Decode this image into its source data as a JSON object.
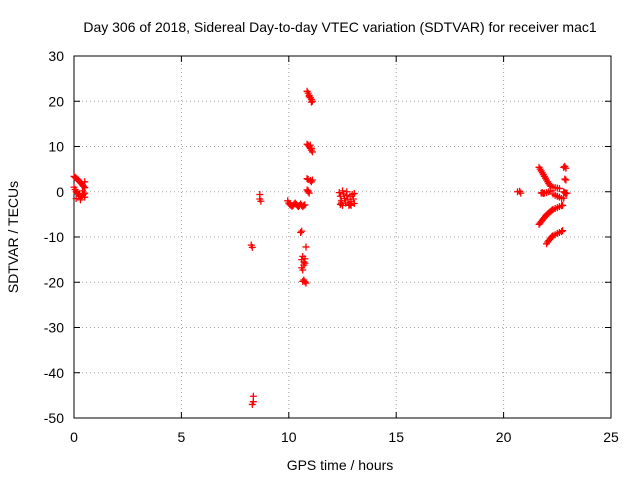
{
  "chart_data": {
    "type": "scatter",
    "title": "Day 306 of 2018, Sidereal Day-to-day VTEC variation (SDTVAR) for receiver mac1",
    "xlabel": "GPS time / hours",
    "ylabel": "SDTVAR / TECUs",
    "xlim": [
      0,
      25
    ],
    "ylim": [
      -50,
      30
    ],
    "xticks": [
      "0",
      "5",
      "10",
      "15",
      "20",
      "25"
    ],
    "yticks": [
      "-50",
      "-40",
      "-30",
      "-20",
      "-10",
      "0",
      "10",
      "20",
      "30"
    ],
    "grid": true,
    "marker": "+",
    "color": "#ff0000",
    "series": [
      {
        "name": "SDTVAR",
        "points": [
          [
            0.0,
            3.4
          ],
          [
            0.05,
            3.2
          ],
          [
            0.1,
            3.0
          ],
          [
            0.15,
            2.8
          ],
          [
            0.2,
            2.6
          ],
          [
            0.25,
            2.3
          ],
          [
            0.3,
            2.0
          ],
          [
            0.35,
            1.8
          ],
          [
            0.4,
            1.5
          ],
          [
            0.45,
            1.2
          ],
          [
            0.5,
            0.9
          ],
          [
            0.5,
            2.2
          ],
          [
            0.4,
            0.2
          ],
          [
            0.0,
            1.0
          ],
          [
            0.05,
            0.5
          ],
          [
            0.1,
            0.0
          ],
          [
            0.15,
            -0.3
          ],
          [
            0.2,
            -0.5
          ],
          [
            0.25,
            -0.8
          ],
          [
            0.3,
            -1.0
          ],
          [
            0.35,
            -1.2
          ],
          [
            0.4,
            -0.8
          ],
          [
            0.45,
            -0.5
          ],
          [
            0.5,
            -0.3
          ],
          [
            0.5,
            -1.2
          ],
          [
            0.1,
            -1.5
          ],
          [
            0.3,
            -1.8
          ],
          [
            8.25,
            -11.8
          ],
          [
            8.3,
            -12.3
          ],
          [
            8.35,
            -45.2
          ],
          [
            8.35,
            -46.4
          ],
          [
            8.3,
            -47.0
          ],
          [
            8.65,
            -0.6
          ],
          [
            8.65,
            -1.6
          ],
          [
            8.7,
            -2.1
          ],
          [
            9.95,
            -2.0
          ],
          [
            10.0,
            -2.5
          ],
          [
            10.05,
            -2.8
          ],
          [
            10.1,
            -3.0
          ],
          [
            10.15,
            -3.2
          ],
          [
            10.2,
            -3.0
          ],
          [
            10.25,
            -2.7
          ],
          [
            10.3,
            -2.5
          ],
          [
            10.35,
            -2.8
          ],
          [
            10.4,
            -3.1
          ],
          [
            10.45,
            -3.3
          ],
          [
            10.5,
            -3.0
          ],
          [
            10.55,
            -2.7
          ],
          [
            10.6,
            -3.0
          ],
          [
            10.65,
            -3.3
          ],
          [
            10.7,
            -3.0
          ],
          [
            10.75,
            -2.9
          ],
          [
            10.6,
            -8.7
          ],
          [
            10.55,
            -9.0
          ],
          [
            10.6,
            -15.0
          ],
          [
            10.65,
            -14.3
          ],
          [
            10.7,
            -15.5
          ],
          [
            10.75,
            -14.8
          ],
          [
            10.7,
            -16.2
          ],
          [
            10.6,
            -16.8
          ],
          [
            10.65,
            -17.3
          ],
          [
            10.8,
            -12.2
          ],
          [
            10.75,
            -15.8
          ],
          [
            10.7,
            -19.5
          ],
          [
            10.75,
            -19.9
          ],
          [
            10.8,
            -20.2
          ],
          [
            10.65,
            -19.8
          ],
          [
            10.85,
            22.2
          ],
          [
            10.9,
            21.8
          ],
          [
            10.95,
            21.3
          ],
          [
            11.0,
            20.8
          ],
          [
            11.05,
            20.4
          ],
          [
            11.1,
            20.0
          ],
          [
            11.05,
            19.8
          ],
          [
            10.95,
            21.0
          ],
          [
            10.85,
            10.5
          ],
          [
            10.9,
            10.3
          ],
          [
            10.95,
            10.0
          ],
          [
            11.0,
            9.6
          ],
          [
            11.05,
            9.2
          ],
          [
            11.1,
            8.8
          ],
          [
            11.05,
            9.6
          ],
          [
            11.0,
            10.3
          ],
          [
            10.85,
            2.9
          ],
          [
            10.9,
            2.7
          ],
          [
            11.0,
            2.5
          ],
          [
            11.1,
            2.6
          ],
          [
            11.05,
            2.2
          ],
          [
            10.85,
            0.4
          ],
          [
            10.9,
            0.0
          ],
          [
            10.95,
            -0.3
          ],
          [
            10.9,
            0.2
          ],
          [
            12.35,
            -0.2
          ],
          [
            12.4,
            -1.0
          ],
          [
            12.45,
            -2.0
          ],
          [
            12.5,
            -3.0
          ],
          [
            12.4,
            -2.8
          ],
          [
            12.55,
            -0.5
          ],
          [
            12.6,
            -1.5
          ],
          [
            12.65,
            -2.5
          ],
          [
            12.7,
            -0.8
          ],
          [
            12.75,
            -1.8
          ],
          [
            12.8,
            -3.0
          ],
          [
            12.85,
            -1.0
          ],
          [
            12.9,
            -2.2
          ],
          [
            12.95,
            -0.6
          ],
          [
            13.0,
            -1.6
          ],
          [
            13.05,
            -2.6
          ],
          [
            13.05,
            -0.4
          ],
          [
            12.5,
            0.2
          ],
          [
            12.7,
            0.0
          ],
          [
            12.9,
            -3.0
          ],
          [
            12.45,
            -2.5
          ],
          [
            12.85,
            -2.8
          ],
          [
            20.65,
            0.0
          ],
          [
            20.75,
            0.1
          ],
          [
            20.8,
            -0.3
          ],
          [
            21.65,
            5.4
          ],
          [
            21.7,
            5.0
          ],
          [
            21.75,
            4.6
          ],
          [
            21.8,
            4.2
          ],
          [
            21.85,
            3.8
          ],
          [
            21.9,
            3.4
          ],
          [
            21.95,
            3.0
          ],
          [
            22.0,
            2.6
          ],
          [
            22.05,
            2.2
          ],
          [
            22.1,
            1.8
          ],
          [
            22.15,
            1.5
          ],
          [
            22.2,
            1.2
          ],
          [
            22.3,
            1.0
          ],
          [
            22.4,
            0.9
          ],
          [
            22.5,
            0.8
          ],
          [
            22.6,
            0.7
          ],
          [
            21.75,
            -0.3
          ],
          [
            21.8,
            -0.2
          ],
          [
            21.85,
            -0.4
          ],
          [
            21.9,
            -0.3
          ],
          [
            22.0,
            -0.2
          ],
          [
            22.1,
            0.0
          ],
          [
            22.2,
            0.2
          ],
          [
            22.3,
            -0.5
          ],
          [
            22.4,
            -0.8
          ],
          [
            22.5,
            -1.0
          ],
          [
            22.6,
            -1.2
          ],
          [
            22.7,
            -1.5
          ],
          [
            22.8,
            -1.4
          ],
          [
            22.85,
            -0.2
          ],
          [
            22.9,
            -0.4
          ],
          [
            22.95,
            -0.3
          ],
          [
            21.65,
            -7.2
          ],
          [
            21.7,
            -6.9
          ],
          [
            21.75,
            -6.6
          ],
          [
            21.8,
            -6.3
          ],
          [
            21.85,
            -6.0
          ],
          [
            21.9,
            -5.7
          ],
          [
            21.95,
            -5.4
          ],
          [
            22.0,
            -5.1
          ],
          [
            22.05,
            -4.9
          ],
          [
            22.1,
            -4.7
          ],
          [
            22.15,
            -4.5
          ],
          [
            22.2,
            -4.3
          ],
          [
            22.25,
            -4.1
          ],
          [
            22.3,
            -3.9
          ],
          [
            22.4,
            -3.7
          ],
          [
            22.5,
            -3.5
          ],
          [
            22.6,
            -3.3
          ],
          [
            22.7,
            -3.1
          ],
          [
            22.75,
            -3.0
          ],
          [
            22.0,
            -11.5
          ],
          [
            22.05,
            -11.1
          ],
          [
            22.1,
            -10.8
          ],
          [
            22.15,
            -10.5
          ],
          [
            22.2,
            -10.2
          ],
          [
            22.25,
            -9.9
          ],
          [
            22.3,
            -9.7
          ],
          [
            22.4,
            -9.5
          ],
          [
            22.5,
            -9.2
          ],
          [
            22.6,
            -9.0
          ],
          [
            22.7,
            -8.8
          ],
          [
            22.75,
            -8.6
          ],
          [
            22.85,
            5.6
          ],
          [
            22.9,
            5.2
          ],
          [
            22.8,
            5.4
          ],
          [
            22.85,
            2.8
          ],
          [
            22.9,
            2.6
          ],
          [
            22.8,
            0.0
          ],
          [
            22.9,
            -0.3
          ]
        ]
      }
    ]
  }
}
